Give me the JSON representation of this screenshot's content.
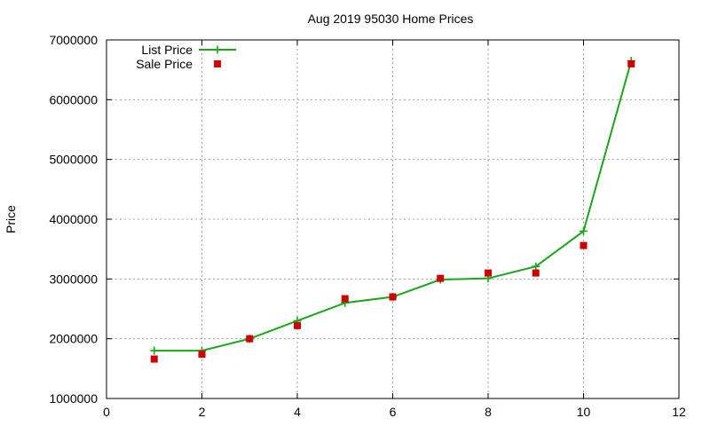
{
  "chart_data": {
    "type": "line",
    "title": "Aug 2019 95030 Home Prices",
    "xlabel": "",
    "ylabel": "Price",
    "xlim": [
      0,
      12
    ],
    "ylim": [
      1000000,
      7000000
    ],
    "x_ticks": [
      0,
      2,
      4,
      6,
      8,
      10,
      12
    ],
    "y_ticks": [
      1000000,
      2000000,
      3000000,
      4000000,
      5000000,
      6000000,
      7000000
    ],
    "grid": true,
    "legend_position": "top-left",
    "series": [
      {
        "name": "List Price",
        "style": "line-with-plus-markers",
        "color": "#1aa51a",
        "x": [
          1,
          2,
          3,
          4,
          5,
          6,
          7,
          8,
          9,
          10,
          11
        ],
        "y": [
          1800000,
          1800000,
          2000000,
          2300000,
          2600000,
          2700000,
          2990000,
          3010000,
          3210000,
          3800000,
          6650000
        ]
      },
      {
        "name": "Sale Price",
        "style": "square-markers",
        "color": "#cc0000",
        "x": [
          1,
          2,
          3,
          4,
          5,
          6,
          7,
          8,
          9,
          10,
          11
        ],
        "y": [
          1660000,
          1740000,
          2000000,
          2220000,
          2670000,
          2700000,
          3010000,
          3100000,
          3100000,
          3560000,
          6600000
        ]
      }
    ]
  }
}
